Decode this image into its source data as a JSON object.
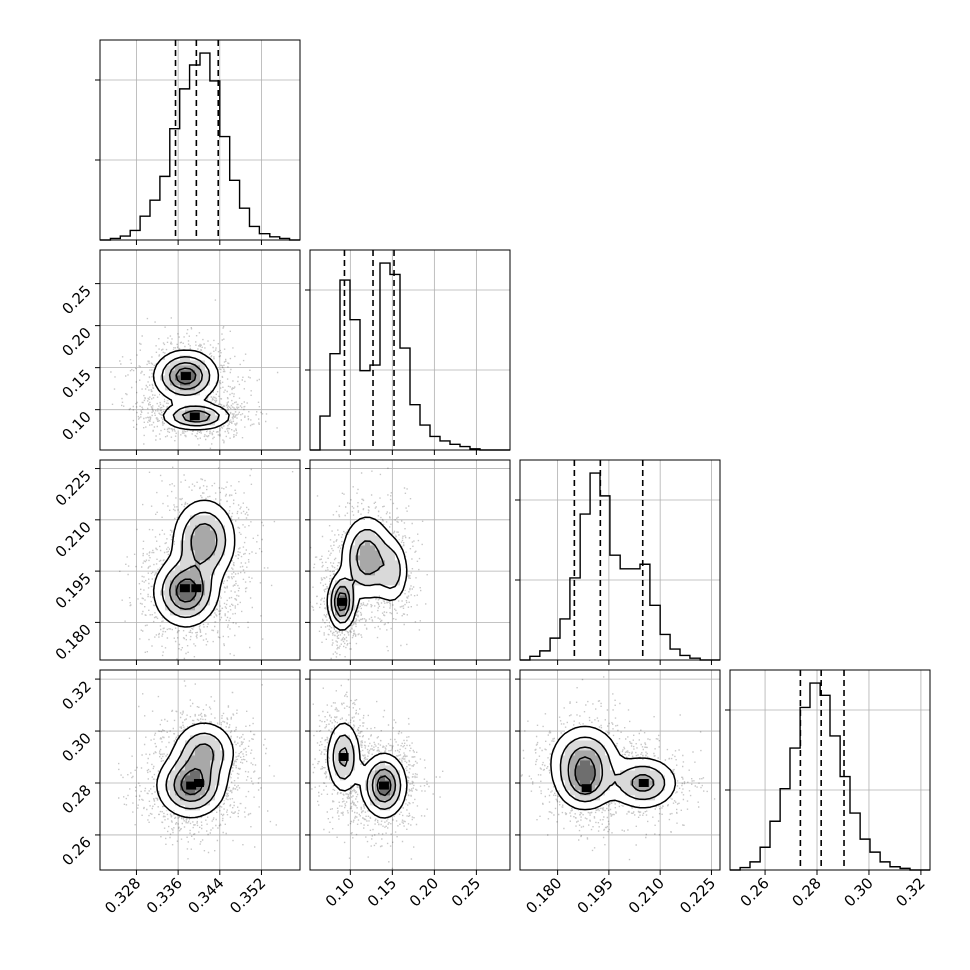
{
  "chart_data": {
    "type": "corner",
    "title": "",
    "parameters": [
      {
        "name": "",
        "range": [
          0.321,
          0.3594
        ],
        "ticks": [
          0.328,
          0.336,
          0.344,
          0.352
        ],
        "tick_labels": [
          "0.328",
          "0.336",
          "0.344",
          "0.352"
        ],
        "quantiles": [
          0.3355,
          0.3395,
          0.3437
        ],
        "hist_bins": [
          0.321,
          0.323,
          0.3249,
          0.3268,
          0.3287,
          0.3306,
          0.3325,
          0.3344,
          0.3363,
          0.3382,
          0.3402,
          0.3421,
          0.344,
          0.3459,
          0.3478,
          0.3497,
          0.3516,
          0.3536,
          0.3555,
          0.3574,
          0.3594
        ],
        "hist_counts": [
          0,
          2,
          5,
          12,
          30,
          50,
          80,
          140,
          190,
          220,
          235,
          200,
          130,
          75,
          40,
          17,
          8,
          4,
          2,
          0
        ]
      },
      {
        "name": "",
        "range": [
          0.052,
          0.29
        ],
        "ticks": [
          0.1,
          0.15,
          0.2,
          0.25
        ],
        "tick_labels": [
          "0.10",
          "0.15",
          "0.20",
          "0.25"
        ],
        "quantiles": [
          0.093,
          0.127,
          0.152
        ],
        "hist_bins": [
          0.052,
          0.0639,
          0.0758,
          0.0877,
          0.0996,
          0.1115,
          0.1234,
          0.1353,
          0.1472,
          0.1591,
          0.171,
          0.1829,
          0.1948,
          0.2067,
          0.2186,
          0.2305,
          0.2424,
          0.2543,
          0.2662,
          0.2781,
          0.29
        ],
        "hist_counts": [
          0,
          30,
          85,
          150,
          115,
          70,
          75,
          165,
          155,
          90,
          40,
          22,
          12,
          8,
          5,
          3,
          1,
          0,
          0,
          0
        ]
      },
      {
        "name": "",
        "range": [
          0.169,
          0.2275
        ],
        "ticks": [
          0.18,
          0.195,
          0.21,
          0.225
        ],
        "tick_labels": [
          "0.180",
          "0.195",
          "0.210",
          "0.225"
        ],
        "quantiles": [
          0.1849,
          0.1925,
          0.2049
        ],
        "hist_bins": [
          0.169,
          0.1719,
          0.1748,
          0.1778,
          0.1807,
          0.1836,
          0.1866,
          0.1895,
          0.1924,
          0.1953,
          0.1983,
          0.2012,
          0.2041,
          0.207,
          0.21,
          0.2129,
          0.2158,
          0.2187,
          0.2217,
          0.2246,
          0.2275
        ],
        "hist_counts": [
          0,
          4,
          10,
          24,
          45,
          90,
          160,
          205,
          180,
          115,
          100,
          100,
          105,
          60,
          28,
          12,
          5,
          2,
          0,
          0
        ]
      },
      {
        "name": "",
        "range": [
          0.2465,
          0.3235
        ],
        "ticks": [
          0.26,
          0.28,
          0.3,
          0.32
        ],
        "tick_labels": [
          "0.26",
          "0.28",
          "0.30",
          "0.32"
        ],
        "quantiles": [
          0.2736,
          0.2816,
          0.2904
        ],
        "hist_bins": [
          0.2465,
          0.2504,
          0.2542,
          0.2581,
          0.2619,
          0.2658,
          0.2696,
          0.2735,
          0.2773,
          0.2812,
          0.285,
          0.2889,
          0.2927,
          0.2966,
          0.3004,
          0.3043,
          0.3081,
          0.312,
          0.3158,
          0.3197,
          0.3235
        ],
        "hist_counts": [
          0,
          3,
          10,
          28,
          60,
          100,
          150,
          200,
          230,
          215,
          165,
          115,
          70,
          38,
          22,
          10,
          4,
          2,
          0,
          0
        ]
      }
    ],
    "pairs": [
      {
        "x": 0,
        "y": 1,
        "modes": [
          {
            "mx": 0.3375,
            "my": 0.14,
            "sx": 0.003,
            "sy": 0.015,
            "w": 0.55
          },
          {
            "mx": 0.3395,
            "my": 0.092,
            "sx": 0.0032,
            "sy": 0.008,
            "w": 0.45
          }
        ],
        "peaks": [
          {
            "x": 0.3375,
            "y": 0.14
          },
          {
            "x": 0.3392,
            "y": 0.092
          }
        ]
      },
      {
        "x": 0,
        "y": 2,
        "modes": [
          {
            "mx": 0.3375,
            "my": 0.189,
            "sx": 0.003,
            "sy": 0.005,
            "w": 0.55
          },
          {
            "mx": 0.341,
            "my": 0.204,
            "sx": 0.003,
            "sy": 0.006,
            "w": 0.45
          }
        ],
        "peaks": [
          {
            "x": 0.3373,
            "y": 0.19
          },
          {
            "x": 0.3395,
            "y": 0.19
          }
        ]
      },
      {
        "x": 1,
        "y": 2,
        "modes": [
          {
            "mx": 0.09,
            "my": 0.186,
            "sx": 0.008,
            "sy": 0.004,
            "w": 0.45
          },
          {
            "mx": 0.12,
            "my": 0.199,
            "sx": 0.015,
            "sy": 0.006,
            "w": 0.35
          },
          {
            "mx": 0.15,
            "my": 0.195,
            "sx": 0.01,
            "sy": 0.005,
            "w": 0.2
          }
        ],
        "peaks": [
          {
            "x": 0.09,
            "y": 0.186
          }
        ]
      },
      {
        "x": 0,
        "y": 3,
        "modes": [
          {
            "mx": 0.3385,
            "my": 0.279,
            "sx": 0.0032,
            "sy": 0.006,
            "w": 0.6
          },
          {
            "mx": 0.341,
            "my": 0.292,
            "sx": 0.003,
            "sy": 0.006,
            "w": 0.4
          }
        ],
        "peaks": [
          {
            "x": 0.3385,
            "y": 0.279
          },
          {
            "x": 0.34,
            "y": 0.28
          }
        ]
      },
      {
        "x": 1,
        "y": 3,
        "modes": [
          {
            "mx": 0.092,
            "my": 0.29,
            "sx": 0.01,
            "sy": 0.007,
            "w": 0.4
          },
          {
            "mx": 0.14,
            "my": 0.279,
            "sx": 0.013,
            "sy": 0.006,
            "w": 0.6
          }
        ],
        "peaks": [
          {
            "x": 0.092,
            "y": 0.29
          },
          {
            "x": 0.14,
            "y": 0.279
          }
        ]
      },
      {
        "x": 2,
        "y": 3,
        "modes": [
          {
            "mx": 0.188,
            "my": 0.288,
            "sx": 0.005,
            "sy": 0.007,
            "w": 0.4
          },
          {
            "mx": 0.188,
            "my": 0.279,
            "sx": 0.004,
            "sy": 0.005,
            "w": 0.25
          },
          {
            "mx": 0.205,
            "my": 0.28,
            "sx": 0.005,
            "sy": 0.005,
            "w": 0.35
          }
        ],
        "peaks": [
          {
            "x": 0.1885,
            "y": 0.278
          },
          {
            "x": 0.2052,
            "y": 0.28
          }
        ]
      }
    ],
    "grid": true,
    "legend": "none"
  }
}
